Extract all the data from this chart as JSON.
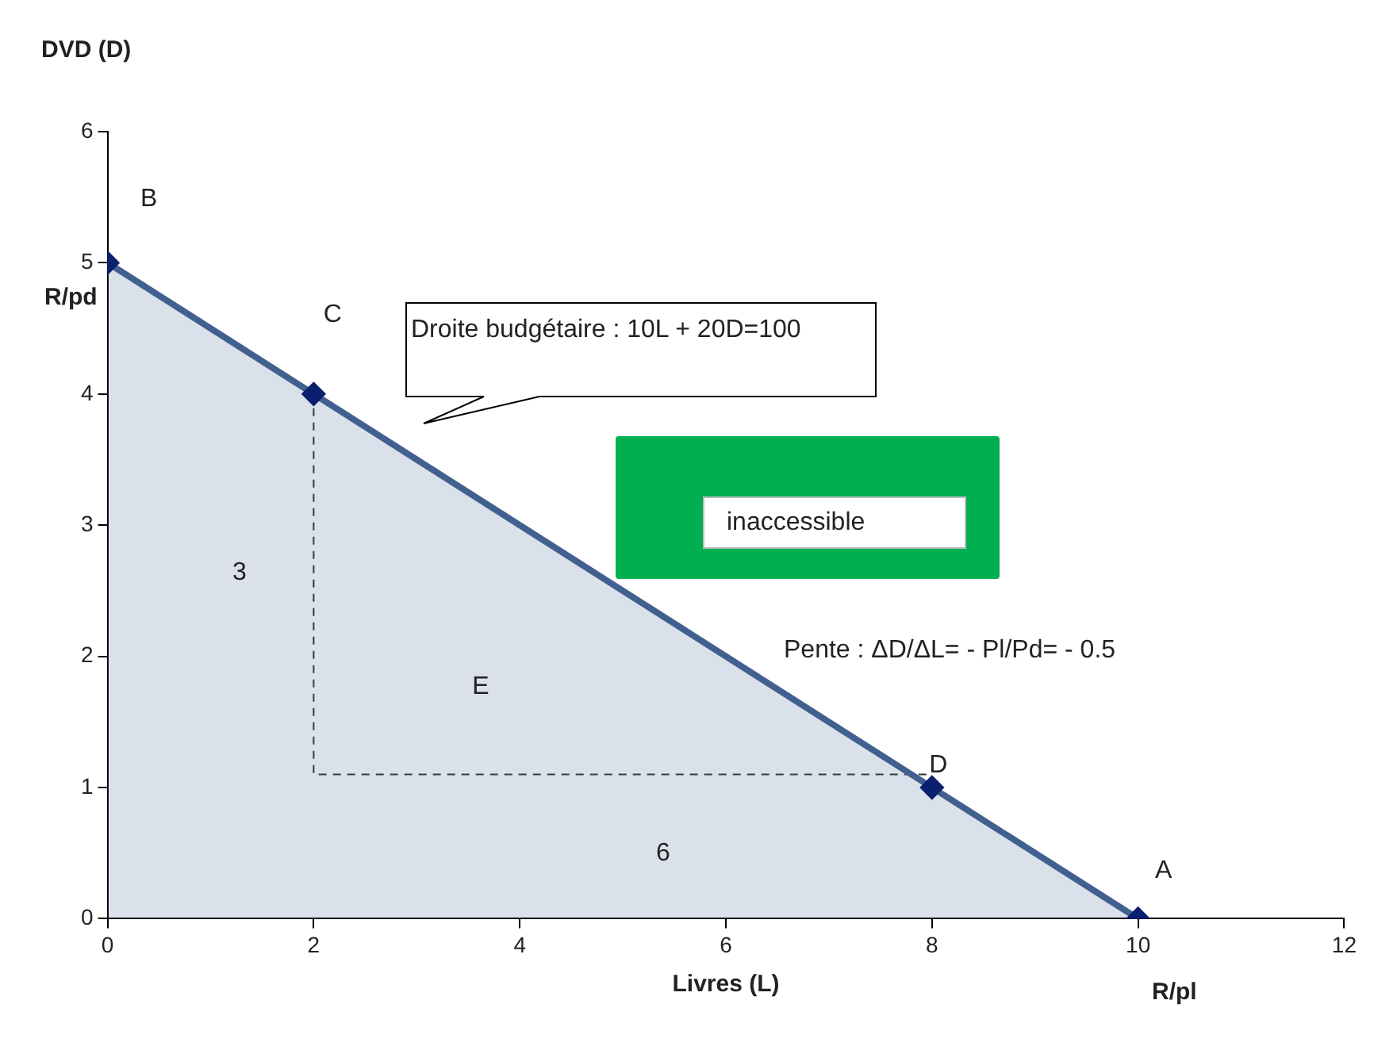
{
  "chart_data": {
    "type": "area",
    "xlabel": "Livres (L)",
    "ylabel": "DVD (D)",
    "xlim": [
      0,
      12
    ],
    "xticks": [
      0,
      2,
      4,
      6,
      8,
      10,
      12
    ],
    "ylim": [
      0,
      6
    ],
    "yticks": [
      0,
      1,
      2,
      3,
      4,
      5,
      6
    ],
    "grid": false,
    "legend": false,
    "series": [
      {
        "type": "area",
        "color": "#41608f",
        "x": [
          0,
          2,
          8,
          10
        ],
        "values": [
          5,
          4,
          1,
          0
        ],
        "marker": "diamond",
        "line_style": "solid"
      },
      {
        "type": "line",
        "color": "#333333",
        "x": [
          2,
          2,
          8
        ],
        "values": [
          4,
          1.1,
          1.1
        ],
        "marker": "none",
        "line_style": "dashed"
      }
    ],
    "annotations": [
      {
        "text": "B",
        "x": 0,
        "y": 5
      },
      {
        "text": "C",
        "x": 2,
        "y": 4
      },
      {
        "text": "D",
        "x": 8,
        "y": 1
      },
      {
        "text": "A",
        "x": 10,
        "y": 0
      },
      "3",
      "E",
      "6",
      "Droite budgétaire : 10L + 20D=100",
      "inaccessible",
      "Pente : ΔD/ΔL= - Pl/Pd= - 0.5",
      "R/pd",
      "R/pl"
    ]
  }
}
